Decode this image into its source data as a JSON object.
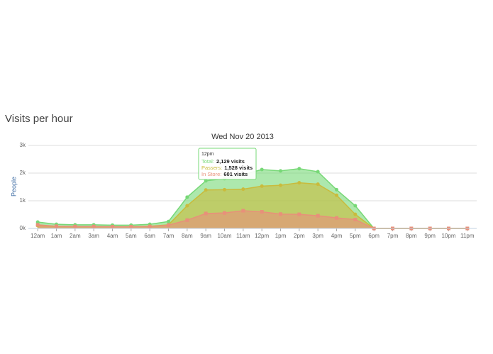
{
  "page_title": "Visits per hour",
  "chart_data": {
    "type": "area",
    "title": "Wed Nov 20 2013",
    "y_label": "People",
    "categories": [
      "12am",
      "1am",
      "2am",
      "3am",
      "4am",
      "5am",
      "6am",
      "7am",
      "8am",
      "9am",
      "10am",
      "11am",
      "12pm",
      "1pm",
      "2pm",
      "3pm",
      "4pm",
      "5pm",
      "6pm",
      "7pm",
      "8pm",
      "9pm",
      "10pm",
      "11pm"
    ],
    "series": [
      {
        "name": "Total",
        "color": "#77d877",
        "marker": "circle",
        "values": [
          230,
          150,
          130,
          130,
          120,
          120,
          150,
          250,
          1130,
          1720,
          1800,
          1950,
          2129,
          2080,
          2160,
          2050,
          1400,
          820,
          0,
          0,
          0,
          0,
          0,
          0
        ]
      },
      {
        "name": "Passers",
        "color": "#c9bb3c",
        "marker": "circle",
        "values": [
          100,
          70,
          60,
          60,
          60,
          60,
          80,
          130,
          820,
          1390,
          1400,
          1420,
          1528,
          1560,
          1650,
          1600,
          1200,
          510,
          0,
          0,
          0,
          0,
          0,
          0
        ]
      },
      {
        "name": "In Store",
        "color": "#e8907a",
        "marker": "square",
        "values": [
          130,
          80,
          70,
          70,
          60,
          60,
          70,
          120,
          300,
          540,
          560,
          640,
          601,
          520,
          510,
          460,
          380,
          320,
          0,
          0,
          0,
          0,
          0,
          0
        ]
      }
    ],
    "ylim": [
      0,
      3000
    ],
    "yticks": [
      {
        "value": 0,
        "label": "0k"
      },
      {
        "value": 1000,
        "label": "1k"
      },
      {
        "value": 2000,
        "label": "2k"
      },
      {
        "value": 3000,
        "label": "3k"
      }
    ],
    "grid": true,
    "tooltip": {
      "title": "12pm",
      "rows": [
        {
          "label": "Total:",
          "value": "2,129 visits"
        },
        {
          "label": "Passers:",
          "value": "1,528 visits"
        },
        {
          "label": "In Store:",
          "value": "601 visits"
        }
      ]
    }
  }
}
